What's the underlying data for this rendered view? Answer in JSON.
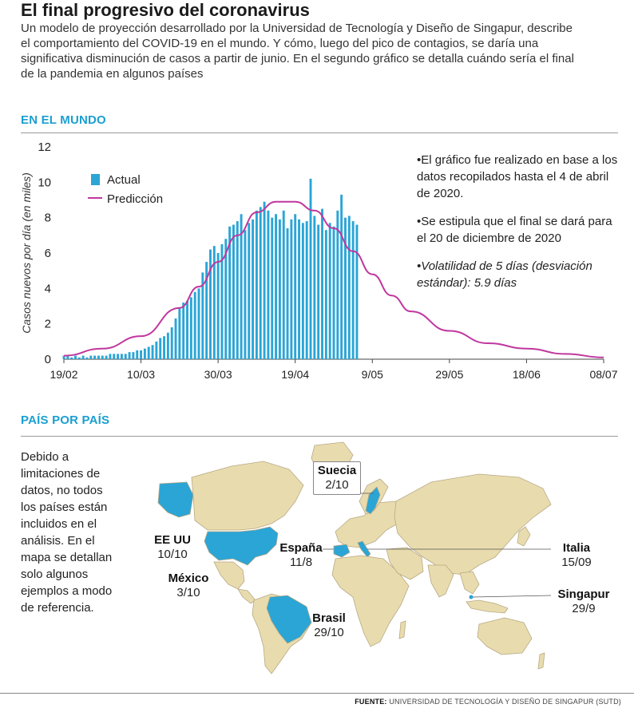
{
  "header": {
    "title": "El final progresivo del coronavirus",
    "subtitle": "Un modelo de proyección desarrollado por la Universidad de Tecnología y Diseño de Singapur, describe el comportamiento del COVID-19 en el mundo. Y cómo, luego del pico de contagios, se daría una significativa disminución de casos a partir de junio. En el segundo gráfico se detalla cuándo sería el final de la pandemia en algunos países"
  },
  "section_world": {
    "title": "EN EL MUNDO"
  },
  "section_country": {
    "title": "PAÍS POR PAÍS"
  },
  "notes": [
    "•El gráfico fue realizado en base a los datos recopilados hasta el 4 de abril de 2020.",
    "•Se estipula que el final se dará para el 20 de diciembre de 2020",
    "•Volatilidad de 5 días (desviación estándar): 5.9 días"
  ],
  "country_note": "Debido a limitaciones de datos, no todos los países están incluidos en el análisis. En el mapa se detallan solo algunos ejemplos a modo de referencia.",
  "colors": {
    "actual": "#2aa5d6",
    "prediction": "#c0379e",
    "highlight": "#2aa5d6",
    "land": "#e8dcae",
    "section": "#1a9fd0"
  },
  "chart_data": {
    "type": "bar",
    "ylabel": "Casos nuevos por día (en miles)",
    "xlabel": "",
    "ylim": [
      0,
      12
    ],
    "yticks": [
      "0",
      "2",
      "4",
      "6",
      "8",
      "10",
      "12"
    ],
    "xticks": [
      "19/02",
      "10/03",
      "30/03",
      "19/04",
      "9/05",
      "29/05",
      "18/06",
      "08/07"
    ],
    "legend": {
      "position": "top-left",
      "entries": [
        "Actual",
        "Predicción"
      ]
    },
    "series": [
      {
        "name": "Actual",
        "kind": "bar",
        "start_date": "19/02",
        "values": [
          0.2,
          0.2,
          0.1,
          0.2,
          0.1,
          0.2,
          0.1,
          0.2,
          0.2,
          0.2,
          0.2,
          0.2,
          0.3,
          0.3,
          0.3,
          0.3,
          0.3,
          0.4,
          0.4,
          0.5,
          0.5,
          0.6,
          0.7,
          0.8,
          1.0,
          1.2,
          1.3,
          1.5,
          1.8,
          2.3,
          2.9,
          3.2,
          3.3,
          3.5,
          3.8,
          4.0,
          4.9,
          5.5,
          6.2,
          6.4,
          6.0,
          6.5,
          6.8,
          7.5,
          7.6,
          7.8,
          8.2,
          7.3,
          7.7,
          7.9,
          8.4,
          8.6,
          8.9,
          8.4,
          8.0,
          8.2,
          7.9,
          8.4,
          7.4,
          7.9,
          8.2,
          7.9,
          7.7,
          7.8,
          10.2,
          8.1,
          7.6,
          8.5,
          7.3,
          7.7,
          7.5,
          8.4,
          9.3,
          8.0,
          8.1,
          7.8,
          7.6
        ]
      },
      {
        "name": "Predicción",
        "kind": "line",
        "x": [
          "19/02",
          "29/02",
          "10/03",
          "20/03",
          "25/03",
          "30/03",
          "04/04",
          "09/04",
          "14/04",
          "19/04",
          "24/04",
          "29/04",
          "04/05",
          "09/05",
          "14/05",
          "19/05",
          "29/05",
          "08/06",
          "18/06",
          "28/06",
          "08/07"
        ],
        "values": [
          0.2,
          0.6,
          1.3,
          2.9,
          4.1,
          5.5,
          7.0,
          8.3,
          8.9,
          8.9,
          8.4,
          7.4,
          6.1,
          4.8,
          3.6,
          2.7,
          1.6,
          0.9,
          0.6,
          0.3,
          0.1
        ]
      }
    ]
  },
  "map": {
    "countries": [
      {
        "name": "EE UU",
        "end_date": "10/10"
      },
      {
        "name": "México",
        "end_date": "3/10"
      },
      {
        "name": "Brasil",
        "end_date": "29/10"
      },
      {
        "name": "España",
        "end_date": "11/8"
      },
      {
        "name": "Suecia",
        "end_date": "2/10"
      },
      {
        "name": "Italia",
        "end_date": "15/09"
      },
      {
        "name": "Singapur",
        "end_date": "29/9"
      }
    ]
  },
  "footer": {
    "label": "FUENTE:",
    "text": "UNIVERSIDAD DE TECNOLOGÍA Y DISEÑO DE SINGAPUR (SUTD)"
  }
}
